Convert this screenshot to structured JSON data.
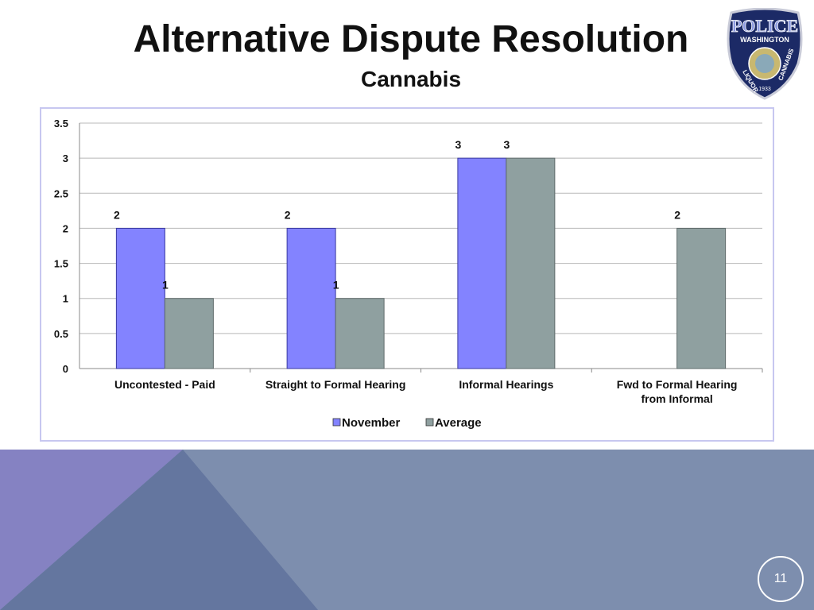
{
  "slide": {
    "title": "Alternative Dispute Resolution",
    "subtitle": "Cannabis",
    "page_number": "11",
    "logo_text": "POLICE WASHINGTON LIQUOR CANNABIS 1933"
  },
  "colors": {
    "november": "#8383ff",
    "average": "#8fa0a0",
    "footer_bg": "#7d8eae",
    "footer_left": "#8582c2",
    "footer_tri": "#64769f"
  },
  "chart_data": {
    "type": "bar",
    "categories": [
      "Uncontested - Paid",
      "Straight to Formal Hearing",
      "Informal Hearings",
      "Fwd to Formal Hearing from Informal"
    ],
    "series": [
      {
        "name": "November",
        "values": [
          2,
          2,
          3,
          null
        ]
      },
      {
        "name": "Average",
        "values": [
          1,
          1,
          3,
          2
        ]
      }
    ],
    "ylim": [
      0,
      3.5
    ],
    "yticks": [
      "0",
      "0.5",
      "1",
      "1.5",
      "2",
      "2.5",
      "3",
      "3.5"
    ],
    "grid": true,
    "legend": "bottom"
  }
}
